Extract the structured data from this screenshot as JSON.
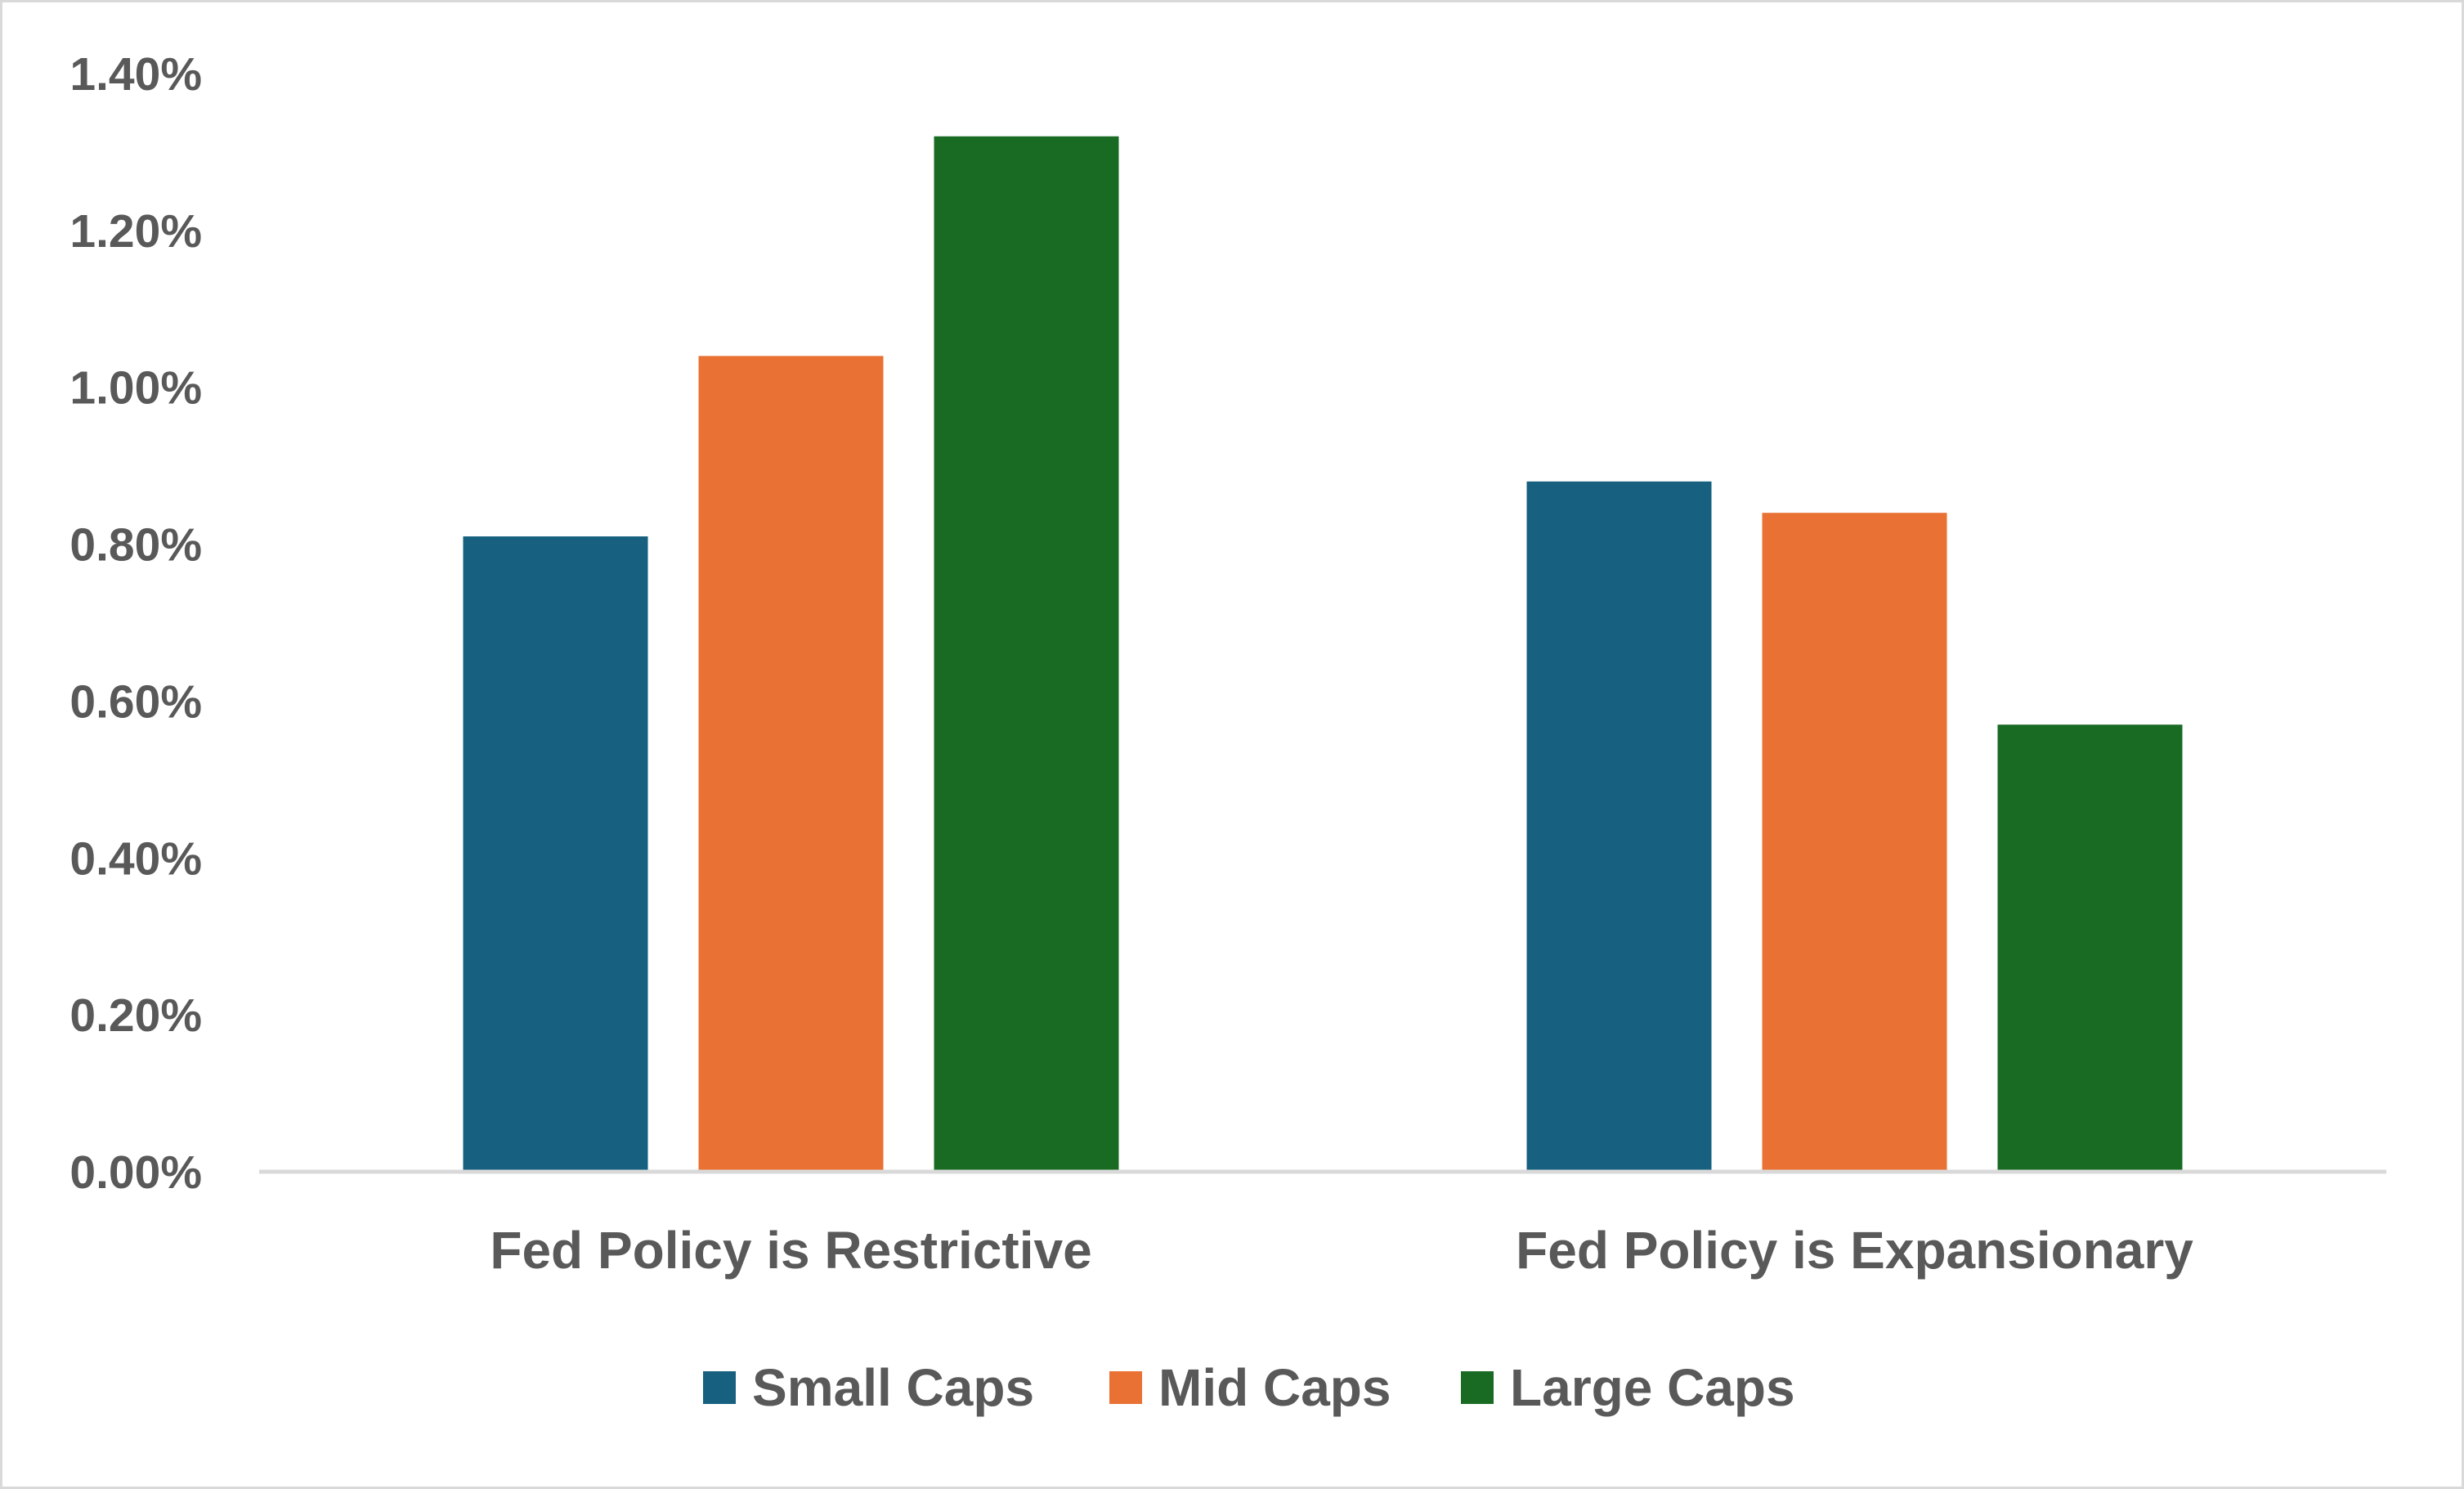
{
  "chart_data": {
    "type": "bar",
    "categories": [
      "Fed Policy is Restrictive",
      "Fed Policy is Expansionary"
    ],
    "series": [
      {
        "name": "Small Caps",
        "values": [
          0.81,
          0.88
        ],
        "color": "#17607f"
      },
      {
        "name": "Mid Caps",
        "values": [
          1.04,
          0.84
        ],
        "color": "#e87133"
      },
      {
        "name": "Large Caps",
        "values": [
          1.32,
          0.57
        ],
        "color": "#196b24"
      }
    ],
    "ylim": [
      0,
      1.4
    ],
    "y_ticks": [
      "0.00%",
      "0.20%",
      "0.40%",
      "0.60%",
      "0.80%",
      "1.00%",
      "1.20%",
      "1.40%"
    ],
    "y_tick_values": [
      0,
      0.2,
      0.4,
      0.6,
      0.8,
      1.0,
      1.2,
      1.4
    ],
    "y_unit": "%",
    "grid": false,
    "legend_position": "bottom",
    "axis_color": "#d9d9d9",
    "text_color": "#595959"
  }
}
